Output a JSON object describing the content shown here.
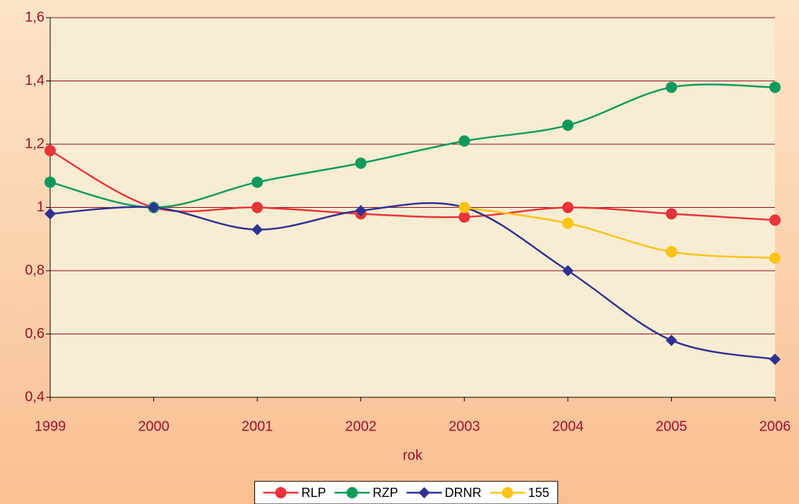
{
  "chart_data": {
    "type": "line",
    "x_label": "rok",
    "x": [
      1999,
      2000,
      2001,
      2002,
      2003,
      2004,
      2005,
      2006
    ],
    "xlim": [
      1999,
      2006
    ],
    "xticks": [
      1999,
      2000,
      2001,
      2002,
      2003,
      2004,
      2005,
      2006
    ],
    "ylim": [
      0.4,
      1.6
    ],
    "yticks": [
      {
        "value": 0.4,
        "label": "0,4"
      },
      {
        "value": 0.6,
        "label": "0,6"
      },
      {
        "value": 0.8,
        "label": "0,8"
      },
      1,
      {
        "value": 1.2,
        "label": "1,2"
      },
      {
        "value": 1.4,
        "label": "1,4"
      },
      {
        "value": 1.6,
        "label": "1,6"
      }
    ],
    "grid": true,
    "smooth": true,
    "legend": "bottom",
    "series": [
      {
        "name": "RLP",
        "color": "#e8343a",
        "marker": "circle",
        "values": [
          1.18,
          1.0,
          1.0,
          0.98,
          0.97,
          1.0,
          0.98,
          0.96
        ]
      },
      {
        "name": "RZP",
        "color": "#0f9a5a",
        "marker": "circle",
        "values": [
          1.08,
          1.0,
          1.08,
          1.14,
          1.21,
          1.26,
          1.38,
          1.38
        ]
      },
      {
        "name": "DRNR",
        "color": "#2e3192",
        "marker": "diamond",
        "values": [
          0.98,
          1.0,
          0.93,
          0.99,
          1.0,
          0.8,
          0.58,
          0.52
        ]
      },
      {
        "name": "155",
        "color": "#fbc316",
        "marker": "circle",
        "values": [
          null,
          null,
          null,
          null,
          1.0,
          0.95,
          0.86,
          0.84
        ]
      }
    ]
  }
}
